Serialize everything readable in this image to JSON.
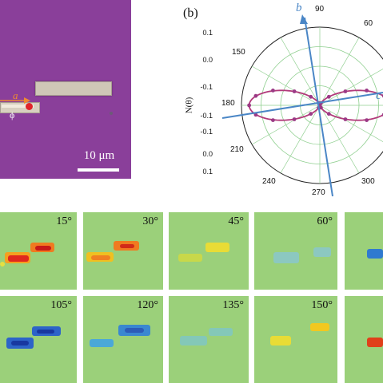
{
  "micrograph": {
    "scale_label": "10 μm",
    "axis_a": "a",
    "axis_phi": "ϕ"
  },
  "polar": {
    "panel_label": "(b)",
    "ylabel": "N(θ)",
    "radial_ticks": [
      "0.1",
      "0.0",
      "-0.1",
      "-0.1",
      "-0.1",
      "0.0",
      "0.1"
    ],
    "angle_labels": [
      "90",
      "60",
      "150",
      "180",
      "210",
      "240",
      "270",
      "300"
    ],
    "axis_b": "b",
    "axis_c": "c"
  },
  "tiles": {
    "labels": [
      "15°",
      "30°",
      "45°",
      "60°",
      "105°",
      "120°",
      "135°",
      "150°"
    ]
  },
  "colors": {
    "micrograph_bg": "#8a3f9a",
    "fit_curve": "#b23a7a",
    "data_points": "#9b3a86",
    "crystal_axes": "#4a86c6",
    "grid": "#8fcf8f"
  },
  "chart_data": {
    "type": "scatter",
    "projection": "polar",
    "ylabel": "N(θ)",
    "radial_range": [
      -0.1,
      0.1
    ],
    "angle_labels": [
      "60",
      "90",
      "150",
      "180",
      "210",
      "240",
      "270",
      "300"
    ],
    "series": [
      {
        "values_theta_deg": [
          0,
          15,
          30,
          45,
          60,
          75,
          90,
          105,
          120,
          135,
          150,
          165,
          180,
          195,
          210,
          225,
          240,
          255,
          270,
          285,
          300,
          315,
          330,
          345
        ],
        "values_r": [
          0.098,
          0.092,
          0.075,
          0.05,
          0.025,
          0.006,
          0.0,
          0.006,
          0.025,
          0.05,
          0.075,
          0.092,
          0.098,
          0.092,
          0.075,
          0.05,
          0.025,
          0.006,
          0.0,
          0.006,
          0.025,
          0.05,
          0.075,
          0.092
        ]
      }
    ]
  }
}
